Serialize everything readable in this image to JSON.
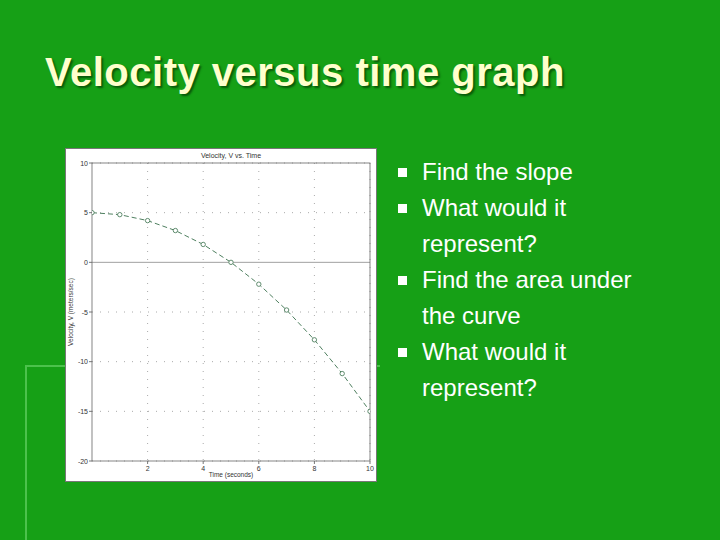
{
  "slide": {
    "title": "Velocity versus time graph",
    "bullets": [
      "Find the slope",
      "What would it represent?",
      "Find the area under the curve",
      "What would it represent?"
    ]
  },
  "chart_data": {
    "type": "line",
    "title": "Velocity, V vs. Time",
    "x_label": "Time (seconds)",
    "y_label": "Velocity, V (meters/sec)",
    "x": [
      0,
      1,
      2,
      3,
      4,
      5,
      6,
      7,
      8,
      9,
      10
    ],
    "values": [
      5.0,
      4.8,
      4.2,
      3.2,
      1.8,
      0.0,
      -2.2,
      -4.8,
      -7.8,
      -11.2,
      -15.0
    ],
    "color": "#4f8060",
    "marker": "circle",
    "line_style": "dashed",
    "xlim": [
      0,
      10
    ],
    "xticks": [
      2,
      4,
      6,
      8,
      10
    ],
    "ylim": [
      -20,
      10
    ],
    "yticks": [
      -20,
      -15,
      -10,
      -5,
      0,
      5,
      10
    ],
    "grid": true
  }
}
